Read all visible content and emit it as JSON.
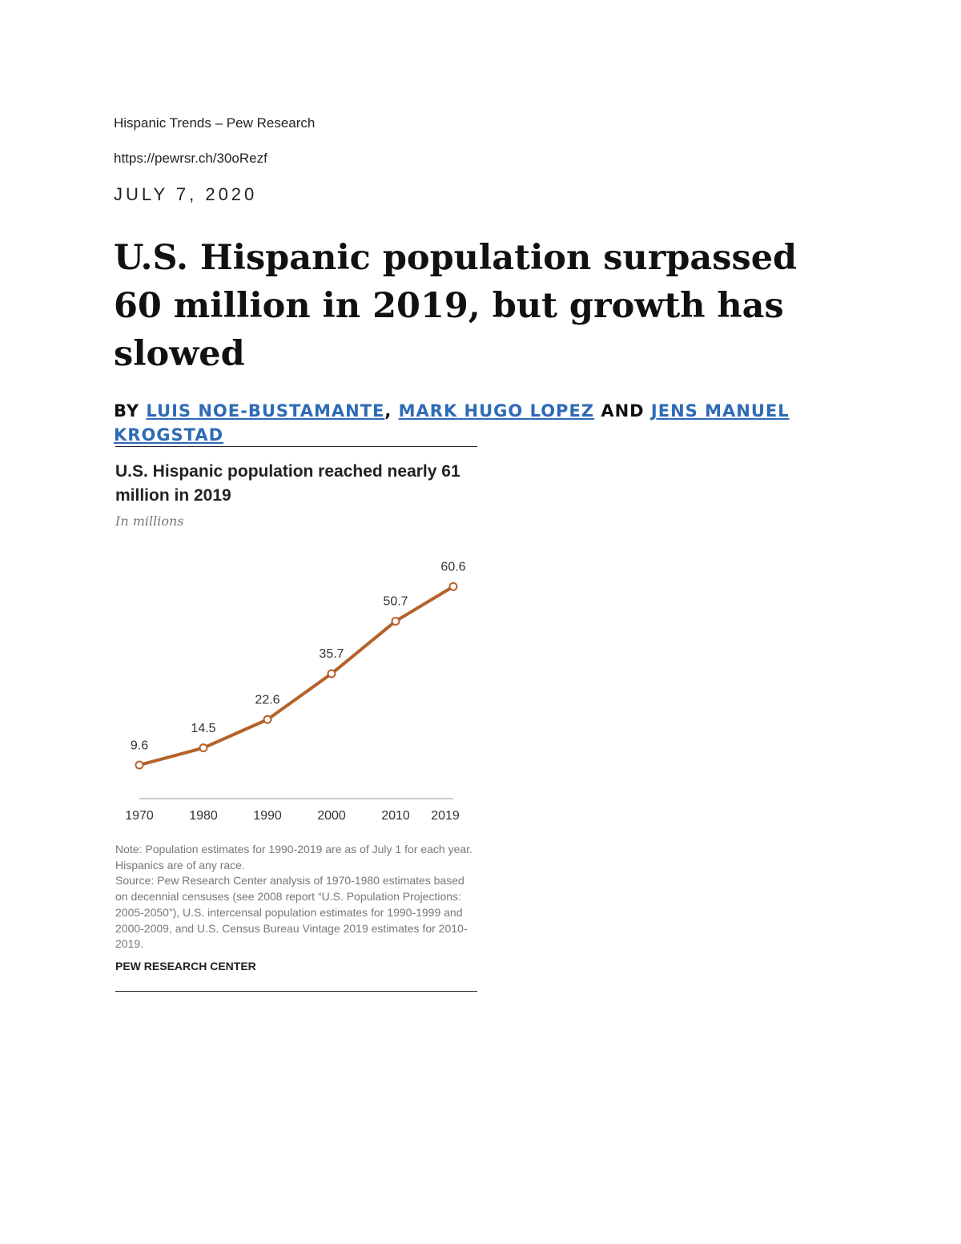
{
  "header": {
    "source": "Hispanic Trends – Pew Research",
    "url": "https://pewrsr.ch/30oRezf",
    "date": "JULY 7, 2020"
  },
  "article": {
    "title": "U.S. Hispanic population surpassed 60 million in 2019, but growth has slowed",
    "byline": {
      "by": "BY",
      "authors": [
        "LUIS NOE-BUSTAMANTE",
        "MARK HUGO LOPEZ",
        "JENS MANUEL KROGSTAD"
      ],
      "separator": ",",
      "conjunction": "AND"
    }
  },
  "chart_data": {
    "type": "line",
    "title": "U.S. Hispanic population reached nearly 61 million in 2019",
    "subtitle": "In millions",
    "x": [
      1970,
      1980,
      1990,
      2000,
      2010,
      2019
    ],
    "values": [
      9.6,
      14.5,
      22.6,
      35.7,
      50.7,
      60.6
    ],
    "color": "#b5622a",
    "xlim": [
      1970,
      2019
    ],
    "xticks": [
      1970,
      1980,
      1990,
      2000,
      2010,
      2019
    ],
    "ylim": [
      0,
      65
    ],
    "note": "Note: Population estimates for 1990-2019 are as of July 1 for each year. Hispanics are of any race.",
    "source": "Source: Pew Research Center analysis of 1970-1980 estimates based on decennial censuses (see 2008 report “U.S. Population Projections: 2005-2050”), U.S. intercensal population estimates for 1990-1999 and 2000-2009, and U.S. Census Bureau Vintage 2019 estimates for 2010-2019.",
    "credit": "PEW RESEARCH CENTER"
  }
}
